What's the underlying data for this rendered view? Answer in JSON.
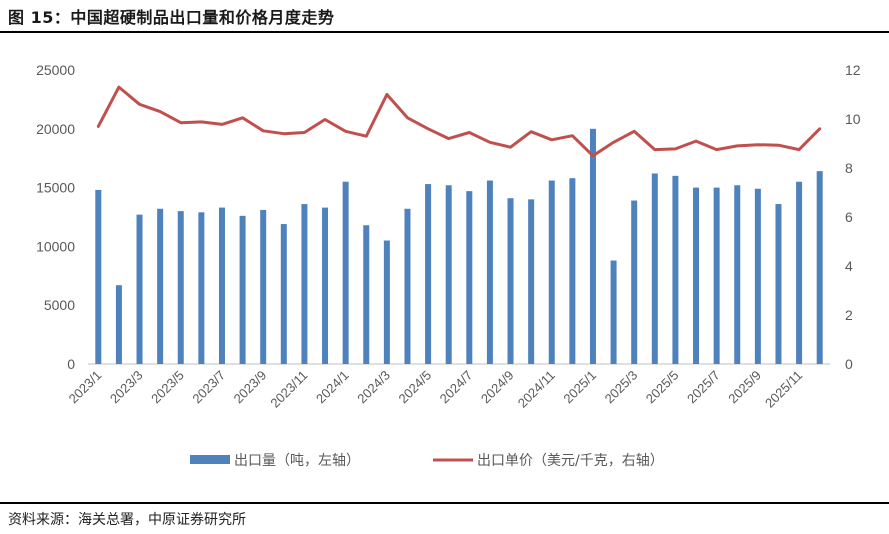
{
  "figure": {
    "title": "图 15：中国超硬制品出口量和价格月度走势",
    "source": "资料来源：海关总署，中原证券研究所"
  },
  "colors": {
    "bar": "#4f81bd",
    "line": "#c0504d",
    "axis_text": "#595959",
    "axis": "#bfbfbf"
  },
  "chart_data": {
    "type": "bar+line",
    "categories": [
      "2023/1",
      "2023/2",
      "2023/3",
      "2023/4",
      "2023/5",
      "2023/6",
      "2023/7",
      "2023/8",
      "2023/9",
      "2023/10",
      "2023/11",
      "2023/12",
      "2024/1",
      "2024/2",
      "2024/3",
      "2024/4",
      "2024/5",
      "2024/6",
      "2024/7",
      "2024/8",
      "2024/9",
      "2024/10",
      "2024/11",
      "2024/12",
      "2025/1",
      "2025/2",
      "2025/3",
      "2025/4",
      "2025/5",
      "2025/6",
      "2025/7",
      "2025/8",
      "2025/9",
      "2025/10",
      "2025/11",
      "2025/12"
    ],
    "x_tick_labels": [
      "2023/1",
      "2023/3",
      "2023/5",
      "2023/7",
      "2023/9",
      "2023/11",
      "2024/1",
      "2024/3",
      "2024/5",
      "2024/7",
      "2024/9",
      "2024/11",
      "2025/1",
      "2025/3",
      "2025/5",
      "2025/7",
      "2025/9",
      "2025/11"
    ],
    "series": [
      {
        "name": "出口量（吨，左轴）",
        "type": "bar",
        "axis": "left",
        "values": [
          14800,
          6700,
          12700,
          13200,
          13000,
          12900,
          13300,
          12600,
          13100,
          11900,
          13600,
          13300,
          15500,
          11800,
          10500,
          13200,
          15300,
          15200,
          14700,
          15600,
          14100,
          14000,
          15600,
          15800,
          20000,
          8800,
          13900,
          16200,
          16000,
          15000,
          15000,
          15200,
          14900,
          13600,
          15500,
          16400
        ]
      },
      {
        "name": "出口单价（美元/千克，右轴）",
        "type": "line",
        "axis": "right",
        "values": [
          9.7,
          11.3,
          10.6,
          10.3,
          9.85,
          9.88,
          9.78,
          10.05,
          9.52,
          9.4,
          9.45,
          9.98,
          9.5,
          9.3,
          11.0,
          10.05,
          9.6,
          9.2,
          9.45,
          9.05,
          8.85,
          9.48,
          9.15,
          9.32,
          8.5,
          9.05,
          9.5,
          8.75,
          8.78,
          9.1,
          8.75,
          8.9,
          8.95,
          8.93,
          8.75,
          9.6
        ]
      }
    ],
    "y_left": {
      "min": 0,
      "max": 25000,
      "ticks": [
        0,
        5000,
        10000,
        15000,
        20000,
        25000
      ]
    },
    "y_right": {
      "min": 0,
      "max": 12,
      "ticks": [
        0,
        2,
        4,
        6,
        8,
        10,
        12
      ]
    },
    "legend_position": "bottom"
  }
}
